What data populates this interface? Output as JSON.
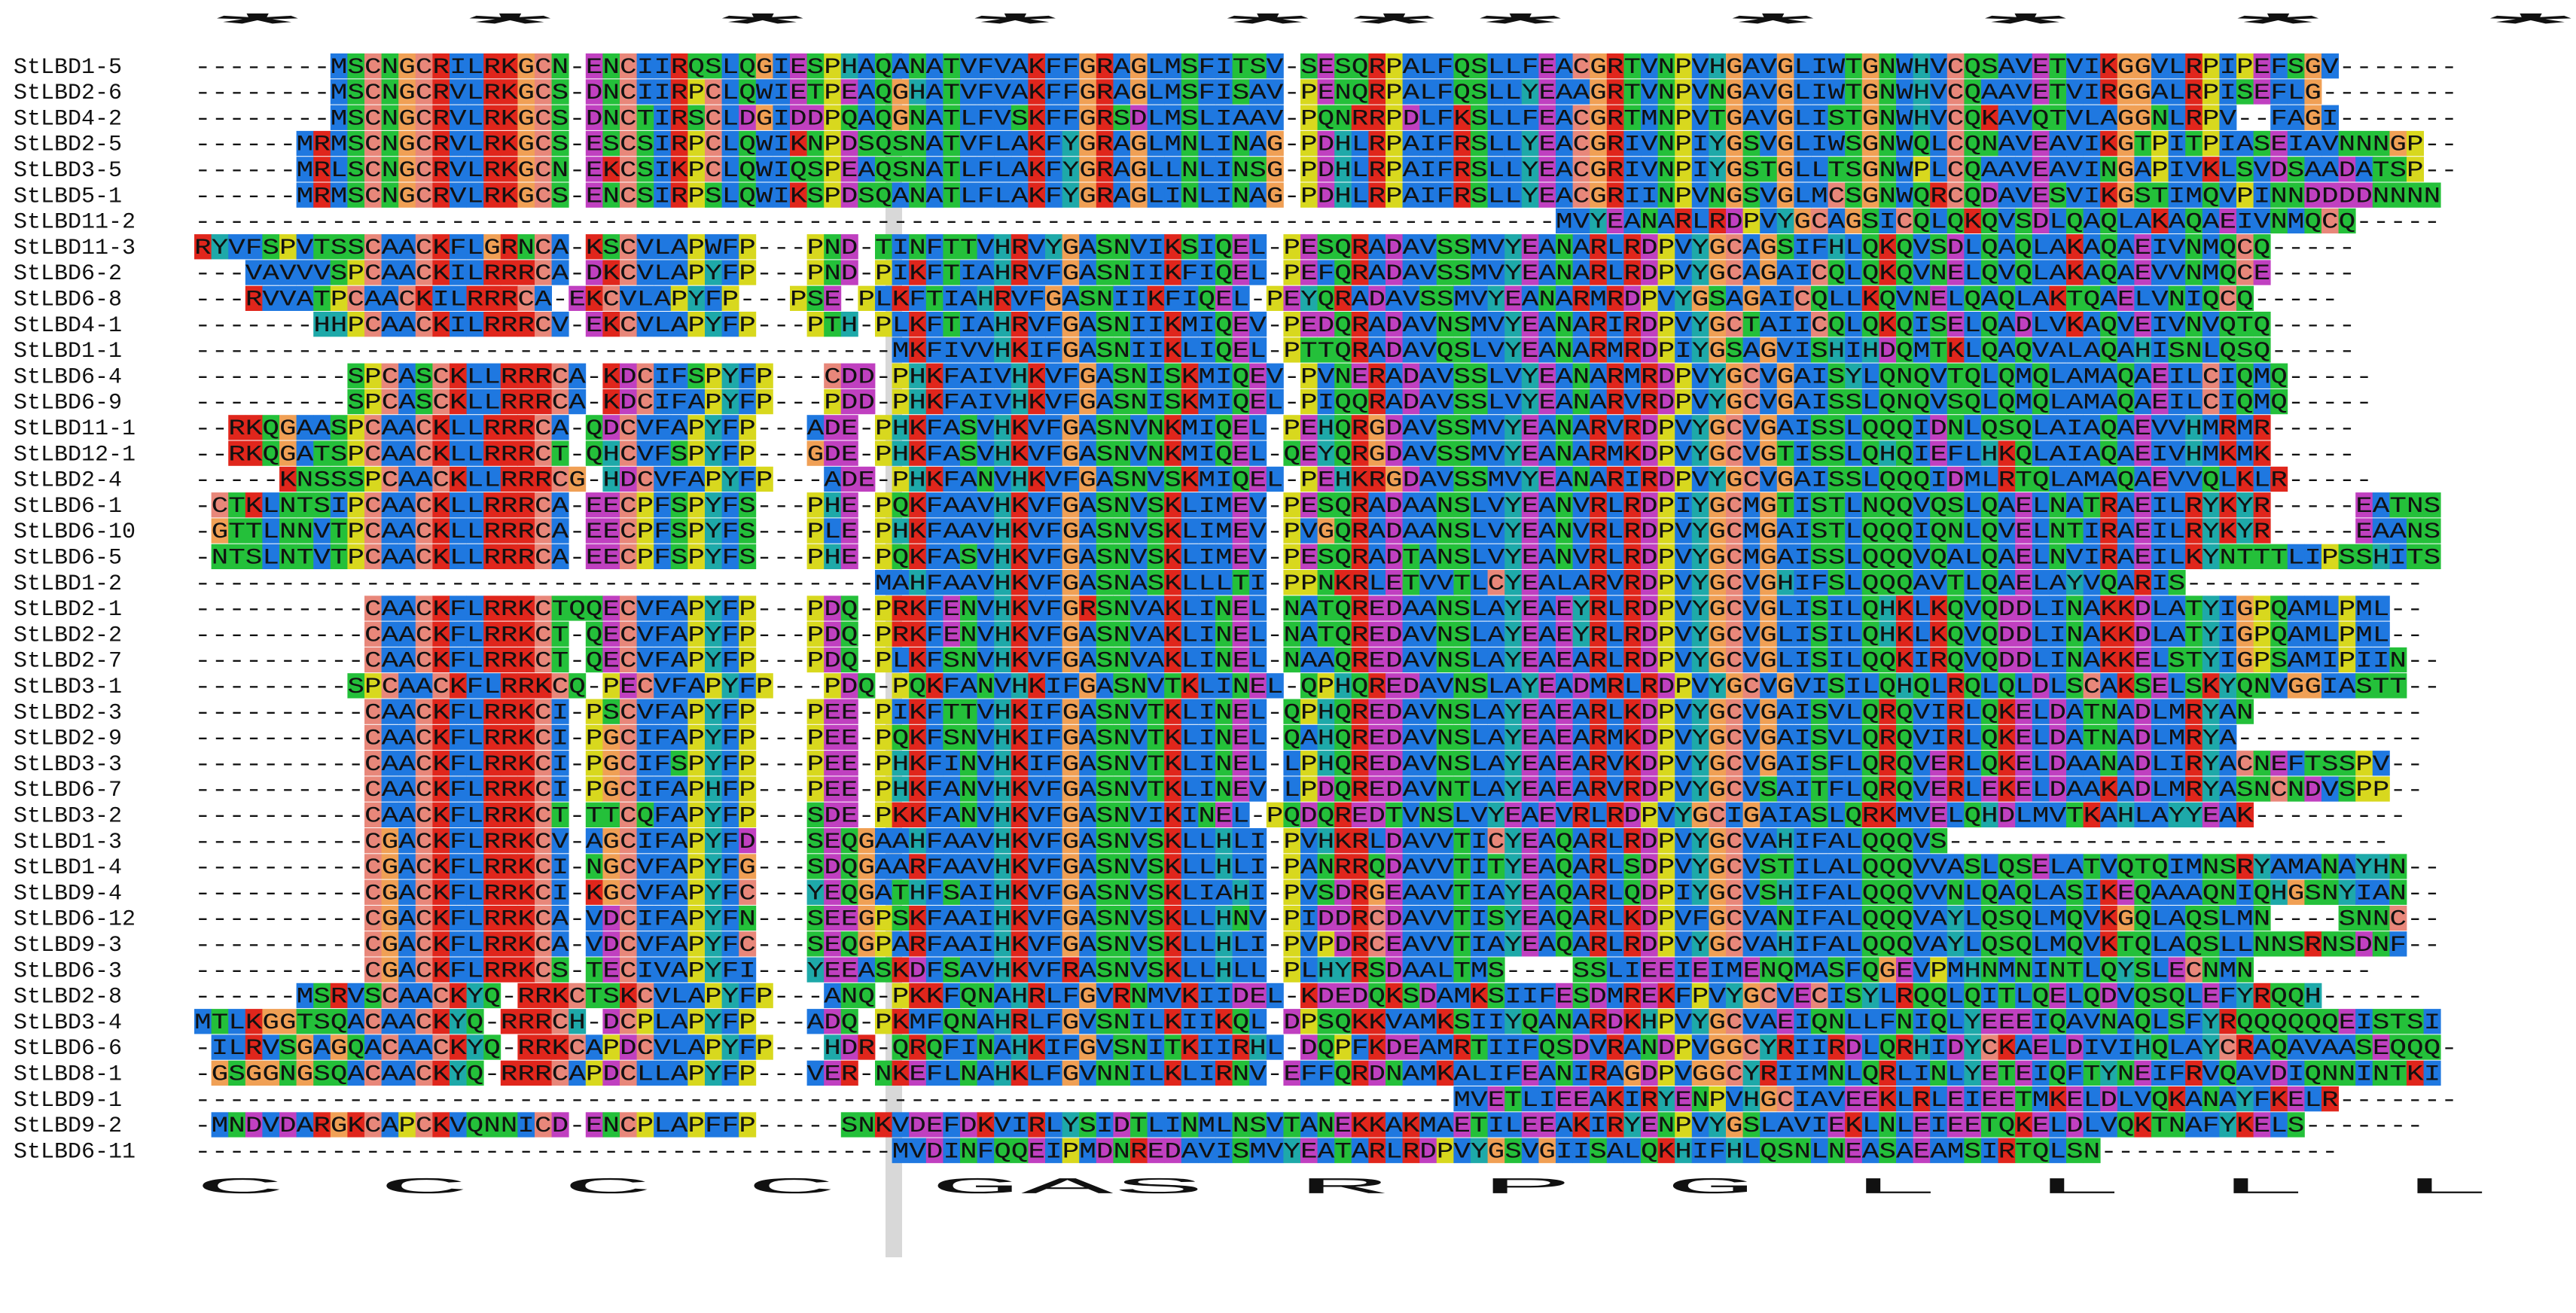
{
  "alignment": {
    "star_row": "          *  *     *    *                               ***                                                  *       *   *     *             ",
    "consensus_row": "          C  C     C    C                               GAS                                 R  P  G      L      L  L     L             ",
    "colors": {
      "C": "#e8877a",
      "G": "#f0a055",
      "A": "#1f78e0",
      "V": "#1f78e0",
      "L": "#1f78e0",
      "I": "#1f78e0",
      "M": "#1f78e0",
      "F": "#1f78e0",
      "W": "#1f78e0",
      "K": "#e0261c",
      "R": "#e0261c",
      "D": "#c040c0",
      "E": "#c040c0",
      "N": "#24c03a",
      "Q": "#24c03a",
      "S": "#24c03a",
      "T": "#24c03a",
      "H": "#1ea9a9",
      "Y": "#1ea9a9",
      "P": "#d8d81e"
    },
    "sequences": [
      {
        "name": "StLBD1-5",
        "seq": "--------MSCNGCRILRKGCN-ENCIIRQSLQGIESPHAQANATVFVAKFFGRAGLMSFITSV-SESQRPALFQSLLFEACGRTVNPVHGAVGLIWTGNWHVCQSAVETVIKGGVLRPIPEFSGV-------"
      },
      {
        "name": "StLBD2-6",
        "seq": "--------MSCNGCRVLRKGCS-DNCIIRPCLQWIETPEAQGHATVFVAKFFGRAGLMSFISAV-PENQRPALFQSLLYEAAGRTVNPVNGAVGLIWTGNWHVCQAAVETVIRGGALRPISEFLG--------"
      },
      {
        "name": "StLBD4-2",
        "seq": "--------MSCNGCRVLRKGCS-DNCTIRSCLDGIDDPQAQGNATLFVSKFFGRSDLMSLIAAV-PQNRRPDLFKSLLFEACGRTMNPVTGAVGLISTGNWHVCQKAVQTVLAGGNLRPV--FAGI-------"
      },
      {
        "name": "StLBD2-5",
        "seq": "------MRMSCNGCRVLRKGCS-ESCSIRPCLQWIKNPDSQSNATVFLAKFYGRAGLMNLINAG-PDHLRPAIFRSLLYEACGRIVNPIYGSVGLIWSGNWQLCQNAVEAVIKGTPITPIASEIAVNNNGP--"
      },
      {
        "name": "StLBD3-5",
        "seq": "------MRLSCNGCRVLRKGCN-EKCSIKPCLQWIQSPEAQSNATLFLAKFYGRAGLLNLINSG-PDHLRPAIFRSLLYEACGRIVNPIYGSTGLLTSGNWPLCQAAVEAVINGAPIVKLSVDSAADATSP--"
      },
      {
        "name": "StLBD5-1",
        "seq": "------MRMSCNGCRVLRKGCS-ENCSIRPSLQWIKSPDSQANATLFLAKFYGRAGLINLINAG-PDHLRPAIFRSLLYEACGRIINPVNGSVGLMCSGNWQRCQDAVESVIKGSTIMQVPINNDDDDNNNN"
      },
      {
        "name": "StLBD11-2",
        "seq": "--------------------------------------------------------------------------------MVYEANARLRDPVYGCAGSICQLQKQVSDLQAQLAKAQAEIVNMQCQ-----"
      },
      {
        "name": "StLBD11-3",
        "seq": "RYVFSPVTSSCAACKFLGRNCA-KSCVLAPWFP---PND-TINFTTVHRVYGASNVIKSIQEL-PESQRADAVSSMVYEANARLRDPVYGCAGSIFHLQKQVSDLQAQLAKAQAEIVNMQCQ-----"
      },
      {
        "name": "StLBD6-2",
        "seq": "---VAVVVSPCAACKILRRRCA-DKCVLAPYFP---PND-PIKFTIAHRVFGASNIIKFIQEL-PEFQRADAVSSMVYEANARLRDPVYGCAGAICQLQKQVNELQVQLAKAQAEVVNMQCE-----"
      },
      {
        "name": "StLBD6-8",
        "seq": "---RVVATPCAACKILRRRCA-EKCVLAPYFP---PSE-PLKFTIAHRVFGASNIIKFIQEL-PEYQRADAVSSMVYEANARMRDPVYGSAGAICQLLKQVNELQAQLAKTQAELVNIQCQ-----"
      },
      {
        "name": "StLBD4-1",
        "seq": "-------HHPCAACKILRRRCV-EKCVLAPYFP---PTH-PLKFTIAHRVFGASNIIKMIQEV-PEDQRADAVNSMVYEANARIRDPVYGCTAIICQLQKQISELQADLVKAQVEIVNVQTQ-----"
      },
      {
        "name": "StLBD1-1",
        "seq": "-----------------------------------------MKFIVVHKIFGASNIIKLIQEL-PTTQRADAVQSLVYEANARMRDPIYGSAGVISHIHDQMTKLQAQVALAQAHISNLQSQ-----"
      },
      {
        "name": "StLBD6-4",
        "seq": "---------SPCASCKLLRRRCA-KDCIFSPYFP---CDD-PHKFAIVHKVFGASNISKMIQEV-PVNERADAVSSLVYEANARMRDPVYGCVGAISYLQNQVTQLQMQLAMAQAEILCIQMQ-----"
      },
      {
        "name": "StLBD6-9",
        "seq": "---------SPCASCKLLRRRCA-KDCIFAPYFP---PDD-PHKFAIVHKVFGASNISKMIQEL-PIQQRADAVSSLVYEANARVRDPVYGCVGAISSLQNQVSQLQMQLAMAQAEILCIQMQ-----"
      },
      {
        "name": "StLBD11-1",
        "seq": "--RKQGAASPCAACKLLRRRCA-QDCVFAPYFP---ADE-PHKFASVHKVFGASNVNKMIQEL-PEHQRGDAVSSMVYEANARVRDPVYGCVGAISSLQQQIDNLQSQLAIAQAEVVHMRMR-----"
      },
      {
        "name": "StLBD12-1",
        "seq": "--RKQGATSPCAACKLLRRRCT-QHCVFSPYFP---GDE-PHKFASVHKVFGASNVNKMIQEL-QEYQRGDAVSSMVYEANARMKDPVYGCVGTISSLQHQIEFLHKQLAIAQAEIVHMKMK-----"
      },
      {
        "name": "StLBD2-4",
        "seq": "-----KNSSSPCAACKLLRRRCG-HDCVFAPYFP---ADE-PHKFANVHKVFGASNVSKMIQEL-PEHKRGDAVSSMVYEANARIRDPVYGCVGAISSLQQQIDMLRTQLAMAQAEVVQLKLR-----"
      },
      {
        "name": "StLBD6-1",
        "seq": "-CTKLNTSIPCAACKLLRRRCA-EECPFSPYFS---PHE-PQKFAAVHKVFGASNVSKLIMEV-PESQRADAANSLVYEANVRLRDPIYGCMGTISTLNQQVQSLQAELNATRAEILRYKYR-----EATNS"
      },
      {
        "name": "StLBD6-10",
        "seq": "-GTTLNNVTPCAACKLLRRRCA-EECPFSPYFS---PLE-PHKFAAVHKVFGASNVSKLIMEV-PVGQRADAANSLVYEANVRLRDPVYGCMGAISTLQQQIQNLQVELNTIRAEILRYKYR-----EAANS"
      },
      {
        "name": "StLBD6-5",
        "seq": "-NTSLNTVTPCAACKLLRRRCA-EECPFSPYFS---PHE-PQKFASVHKVFGASNVSKLIMEV-PESQRADTANSLVYEANVRLRDPVYGCMGAISSLQQQVQALQAELNVIRAEILKYNTTTLIPSSHITS"
      },
      {
        "name": "StLBD1-2",
        "seq": "----------------------------------------MAHFAAVHKVFGASNASKLLLTI-PPNKRLETVVTLCYEALARVRDPVYGCVGHIFSLQQQAVTLQAELAYVQARIS--------------"
      },
      {
        "name": "StLBD2-1",
        "seq": "----------CAACKFLRRKCTQQECVFAPYFP---PDQ-PRKFENVHKVFGRSNVAKLINEL-NATQREDAANSLAYEAEYRLRDPVYGCVGLISILQHKLKQVQDDLINAKKDLATYIGPQAMLPML--"
      },
      {
        "name": "StLBD2-2",
        "seq": "----------CAACKFLRRKCT-QECVFAPYFP---PDQ-PRKFENVHKVFGASNVAKLINEL-NATQREDAVNSLAYEAEYRLRDPVYGCVGLISILQHKLKQVQDDLINAKKDLATYIGPQAMLPML--"
      },
      {
        "name": "StLBD2-7",
        "seq": "----------CAACKFLRRKCT-QECVFAPYFP---PDQ-PLKFSNVHKVFGASNVAKLINEL-NAAQREDAVNSLAYEAEARLRDPVYGCVGLISILQQKIRQVQDDLINAKKELSTYIGPSAMIPIIN--"
      },
      {
        "name": "StLBD3-1",
        "seq": "---------SPCAACKFLRRKCQ-PECVFAPYFP---PDQ-PQKFANVHKIFGASNVTKLINEL-QPHQREDAVNSLAYEADMRLRDPVYGCVGVISILQHQLRQLQLDLSCAKSELSKYQNVGGIASTT--"
      },
      {
        "name": "StLBD2-3",
        "seq": "----------CAACKFLRRKCI-PSCVFAPYFP---PEE-PIKFTTVHKIFGASNVTKLINEL-QPHQREDAVNSLAYEAEARLKDPVYGCVGAISVLQRQVIRLQKELDATNADLMRYAN----------"
      },
      {
        "name": "StLBD2-9",
        "seq": "----------CAACKFLRRKCI-PGCIFAPYFP---PEE-PQKFSNVHKIFGASNVTKLINEL-QAHQREDAVNSLAYEAEARMKDPVYGCVGAISVLQRQVIRLQKELDATNADLMRYA-----------"
      },
      {
        "name": "StLBD3-3",
        "seq": "----------CAACKFLRRKCI-PGCIFSPYFP---PEE-PHKFINVHKIFGASNVTKLINEL-LPHQREDAVNSLAYEAEARVKDPVYGCVGAISFLQRQVERLQKELDAANADLIRYACNEFTSSPV--"
      },
      {
        "name": "StLBD6-7",
        "seq": "----------CAACKFLRRKCI-PGCIFAPHFP---PEE-PHKFANVHKVFGASNVTKLINEV-LPDQREDAVNTLAYEAEARVRDPVYGCVSAITFLQRQVERLEKELDAAKADLMRYASNCNDVSPP--"
      },
      {
        "name": "StLBD3-2",
        "seq": "----------CAACKFLRRKCT-TTCQFAPYFP---SDE-PKKFANVHKVFGASNVIKINEL-PQDQREDTVNSLVYEAEVRLRDPVYGCIGAIASLQRKMVELQHDLMVTKAHLAYYEAK---------"
      },
      {
        "name": "StLBD1-3",
        "seq": "----------CGACKFLRRKCV-AGCIFAPYFD---SEQGAAHFAAVHKVFGASNVSKLLHLI-PVHKRLDAVVTICYEAQARLRDPVYGCVAHIFALQQQVS--------------------------"
      },
      {
        "name": "StLBD1-4",
        "seq": "----------CGACKFLRRKCI-NGCVFAPYFG---SDQGAARFAAVHKVFGASNVSKLLHLI-PANRRQDAVVTITYEAQARLSDPVYGCVSTILALQQQVVASLQSELATVQTQIMNSRYAMANAYHN--"
      },
      {
        "name": "StLBD9-4",
        "seq": "----------CGACKFLRRKCI-KGCVFAPYFC---YEQGATHFSAIHKVFGASNVSKLIAHI-PVSDRGEAAVTIAYEAQARLQDPIYGCVSHIFALQQQVVNLQAQLASIKEQAAAQNIQHGSNYIAN--"
      },
      {
        "name": "StLBD6-12",
        "seq": "----------CGACKFLRRKCA-VDCIFAPYFN---SEEGPSKFAAIHKVFGASNVSKLLHNV-PIDDRCDAVVTISYEAQARLKDPVFGCVANIFALQQQVAYLQSQLMQVKGQLAQSLMN----SNNC--"
      },
      {
        "name": "StLBD9-3",
        "seq": "----------CGACKFLRRKCA-VDCVFAPYFC---SEQGPARFAAIHKVFGASNVSKLLHLI-PVPDRCEAVVTIAYEAQARLRDPVYGCVAHIFALQQQVAYLQSQLMQVKTQLAQSLLNNSRNSDNF--"
      },
      {
        "name": "StLBD6-3",
        "seq": "----------CGACKFLRRKCS-TECIVAPYFI---YEEASKDFSAVHKVFRASNVSKLLHLL-PLHYRSDAALTMS----SSLIEEIEIMENQMASFQGEVPMHNMNINTLQYSLECNMN-------"
      },
      {
        "name": "StLBD2-8",
        "seq": "------MSRVSCAACKYQ-RRKCTSKCVLAPYFP---ANQ-PKKFQNAHRLFGVRNMVKIIDEL-KDEDQKSDAMKSIIFESDMREKFPVYGCVECISYLRQQLQITLQELQDVQSQLEFYRQQH------"
      },
      {
        "name": "StLBD3-4",
        "seq": "MTLKGGTSQACAACKYQ-RRRCH-DCPLAPYFP---ADQ-PKMFQNAHRLFGVSNILKIIKQL-DPSQKKVAMKSIIYQANARDKHPVYGCVAEIQNLLFNIQLYEEEIQAVNAQLSFYRQQQQQQEISTSI"
      },
      {
        "name": "StLBD6-6",
        "seq": "-ILRVSGAGQACAACKYQ-RRKCAPDCVLAPYFP---HDR-QRQFINAHKIFGVSNITKIIRHL-DQPFKDEAMRTIIFQSDVRANDPVGGCYRIIRDLQRHIDYCKAELDIVIHQLAYCRAQAVAASEQQQ-"
      },
      {
        "name": "StLBD8-1",
        "seq": "-GSGGNGSQACAACKYQ-RRRCAPDCLLAPYFP---VER-NKEFLNAHKLFGVNNILKLIRNV-EFFQRDNAMKALIFEANIRAGDPVGGCYRIIMNLQRLINLYETEIQFTYNEIFRVQAVDIQNNINTKI"
      },
      {
        "name": "StLBD9-1",
        "seq": "--------------------------------------------------------------------------MVETLIEEAKIRYENPVHGCIAVEEKLRLEIEETMKELDLVQKANAYFKELR-------"
      },
      {
        "name": "StLBD9-2",
        "seq": "-MNDVDARGKCAPCKVQNNICD-ENCPLAPFFP-----SNKVDEFDKVIRLYSIDTLINMLNSVTANEKKAKMAETILEEAKIRYENPVYGSLAVIEKLNLEIEETQKELDLVQKTNAFYKELS-------"
      },
      {
        "name": "StLBD6-11",
        "seq": "-----------------------------------------MVDINFQQEIPMDNREDAVISMVYEATARLRDPVYGSVGIISALQKHIFHLQSNLNEASAEAMSIRTQLSN--------------"
      }
    ]
  }
}
